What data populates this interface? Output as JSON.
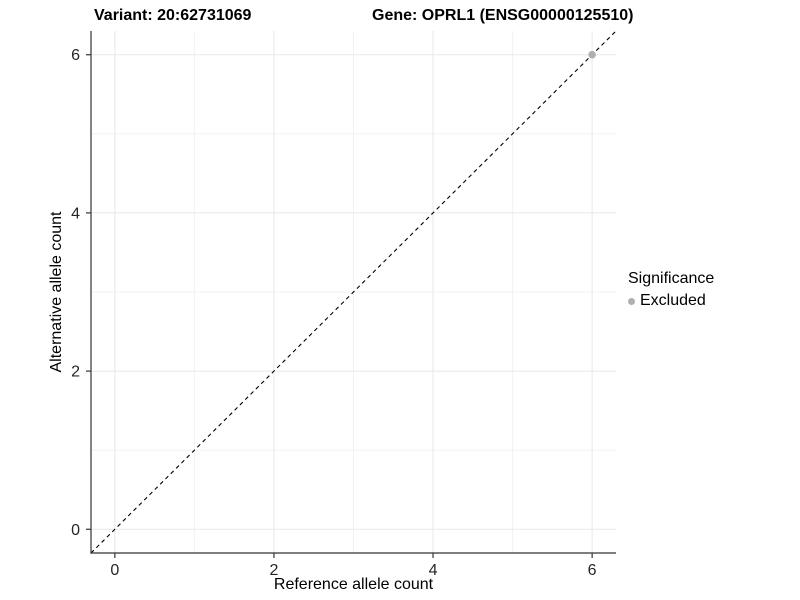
{
  "header": {
    "variant_title": "Variant: 20:62731069",
    "gene_title": "Gene: OPRL1 (ENSG00000125510)"
  },
  "legend": {
    "title": "Significance",
    "items": [
      {
        "label": "Excluded",
        "color": "#b0b0b0"
      }
    ]
  },
  "chart_data": {
    "type": "scatter",
    "title": "Variant: 20:62731069 — Gene: OPRL1 (ENSG00000125510)",
    "xlabel": "Reference allele count",
    "ylabel": "Alternative allele count",
    "xlim": [
      -0.3,
      6.3
    ],
    "ylim": [
      -0.3,
      6.3
    ],
    "x_ticks": [
      0,
      2,
      4,
      6
    ],
    "y_ticks": [
      0,
      2,
      4,
      6
    ],
    "x_minor_ticks": [
      1,
      3,
      5
    ],
    "y_minor_ticks": [
      1,
      3,
      5
    ],
    "grid": "major and minor gridlines, white panel background",
    "legend_position": "right-middle",
    "reference_line": {
      "kind": "identity y=x",
      "style": "dashed",
      "color": "#000000",
      "x1": -0.3,
      "y1": -0.3,
      "x2": 6.3,
      "y2": 6.3
    },
    "series": [
      {
        "name": "Excluded",
        "color": "#b0b0b0",
        "marker": "circle",
        "points": [
          {
            "x": 6,
            "y": 6
          }
        ]
      }
    ]
  },
  "colors": {
    "background": "#ffffff",
    "grid_major": "#e8e8e8",
    "grid_minor": "#f2f2f2",
    "axis_line": "#333333",
    "tick_mark": "#333333",
    "tick_label": "#262626",
    "title_text": "#000000",
    "excluded_point": "#b0b0b0",
    "identity_line": "#000000"
  }
}
